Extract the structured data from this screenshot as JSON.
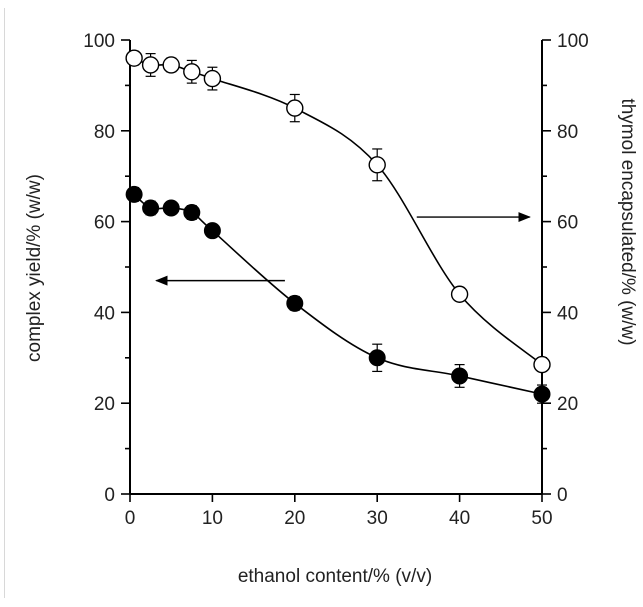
{
  "chart_data": {
    "type": "scatter",
    "xlabel": "ethanol content/% (v/v)",
    "ylabel_left": "complex yield/% (w/w)",
    "ylabel_right": "thymol encapsulated/% (w/w)",
    "xlim": [
      0,
      50
    ],
    "ylim_left": [
      0,
      100
    ],
    "ylim_right": [
      0,
      100
    ],
    "x_ticks": [
      0,
      10,
      20,
      30,
      40,
      50
    ],
    "y_ticks": [
      0,
      20,
      40,
      60,
      80,
      100
    ],
    "grid": false,
    "legend": "none",
    "series": [
      {
        "axis": "right",
        "marker": "open-circle",
        "x": [
          0.5,
          2.5,
          5,
          7.5,
          10,
          20,
          30,
          40,
          50
        ],
        "y": [
          96,
          94.5,
          94.5,
          93,
          91.5,
          85,
          72.5,
          44,
          28.5
        ],
        "err": [
          1.5,
          2.5,
          1.5,
          2.5,
          2.5,
          3,
          3.5,
          1,
          1
        ]
      },
      {
        "axis": "left",
        "marker": "filled-circle",
        "x": [
          0.5,
          2.5,
          5,
          7.5,
          10,
          20,
          30,
          40,
          50
        ],
        "y": [
          66,
          63,
          63,
          62,
          58,
          42,
          30,
          26,
          22
        ],
        "err": [
          1.5,
          1.5,
          1,
          1.5,
          1,
          1.5,
          3,
          2.5,
          2
        ]
      }
    ],
    "annotations": [
      {
        "type": "arrow",
        "direction": "left",
        "points_to": "left-axis"
      },
      {
        "type": "arrow",
        "direction": "right",
        "points_to": "right-axis"
      }
    ]
  }
}
